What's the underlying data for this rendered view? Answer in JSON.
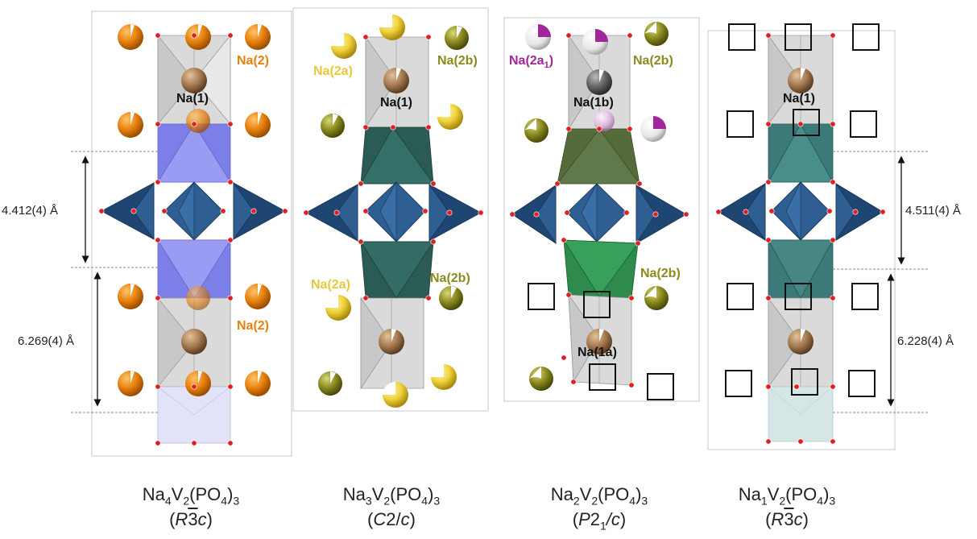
{
  "colors": {
    "na2_orange": "#e8820f",
    "na1_brown": "#a77b52",
    "na2a_yellow": "#f0d23c",
    "na2b_olive": "#8b8a1f",
    "na2a1_magenta": "#a0279a",
    "oxygen_red": "#e02020",
    "po4_tetra": "#2a5588",
    "vo6_na4": "#7d7fe8",
    "vo6_na3": "#2a5b55",
    "vo6_na2_top": "#556b3a",
    "vo6_na2_bottom": "#2e8a4d",
    "vo6_na1": "#3b7a78",
    "nao6_grey": "#d4d4d4"
  },
  "panels": [
    {
      "formula": {
        "p1": "Na",
        "s1": "4",
        "p2": "V",
        "s2": "2",
        "p3": "(PO",
        "s3": "4",
        "p4": ")",
        "s4": "3"
      },
      "space_group": {
        "a": "(",
        "b": "R",
        "c": "3",
        "d": "c",
        "e": ")"
      },
      "labels": {
        "na2_top": "Na(2)",
        "na1": "Na(1)",
        "na2_bottom": "Na(2)"
      },
      "dims": {
        "upper": "4.412(4) Å",
        "lower": "6.269(4) Å"
      }
    },
    {
      "formula": {
        "p1": "Na",
        "s1": "3",
        "p2": "V",
        "s2": "2",
        "p3": "(PO",
        "s3": "4",
        "p4": ")",
        "s4": "3"
      },
      "space_group": {
        "a": "(",
        "b": "C",
        "c": "2/",
        "d": "c",
        "e": ")"
      },
      "labels": {
        "na2a_top": "Na(2a)",
        "na2b_top": "Na(2b)",
        "na1": "Na(1)",
        "na2a_bottom": "Na(2a)",
        "na2b_bottom": "Na(2b)"
      }
    },
    {
      "formula": {
        "p1": "Na",
        "s1": "2",
        "p2": "V",
        "s2": "2",
        "p3": "(PO",
        "s3": "4",
        "p4": ")",
        "s4": "3"
      },
      "space_group": {
        "a": "(",
        "b": "P",
        "c": "2",
        "sub": "1",
        "d": "/c",
        "e": ")"
      },
      "labels": {
        "na2a1": "Na(2a",
        "na2a1_sub": "1",
        "na2a1_close": ")",
        "na2b_top": "Na(2b)",
        "na1b": "Na(1b)",
        "na2b_bottom": "Na(2b)",
        "na1a": "Na(1a)"
      }
    },
    {
      "formula": {
        "p1": "Na",
        "s1": "1",
        "p2": "V",
        "s2": "2",
        "p3": "(PO",
        "s3": "4",
        "p4": ")",
        "s4": "3"
      },
      "space_group": {
        "a": "(",
        "b": "R",
        "c": "3",
        "d": "c",
        "e": ")"
      },
      "labels": {
        "na1": "Na(1)"
      },
      "dims": {
        "upper": "4.511(4) Å",
        "lower": "6.228(4) Å"
      }
    }
  ]
}
